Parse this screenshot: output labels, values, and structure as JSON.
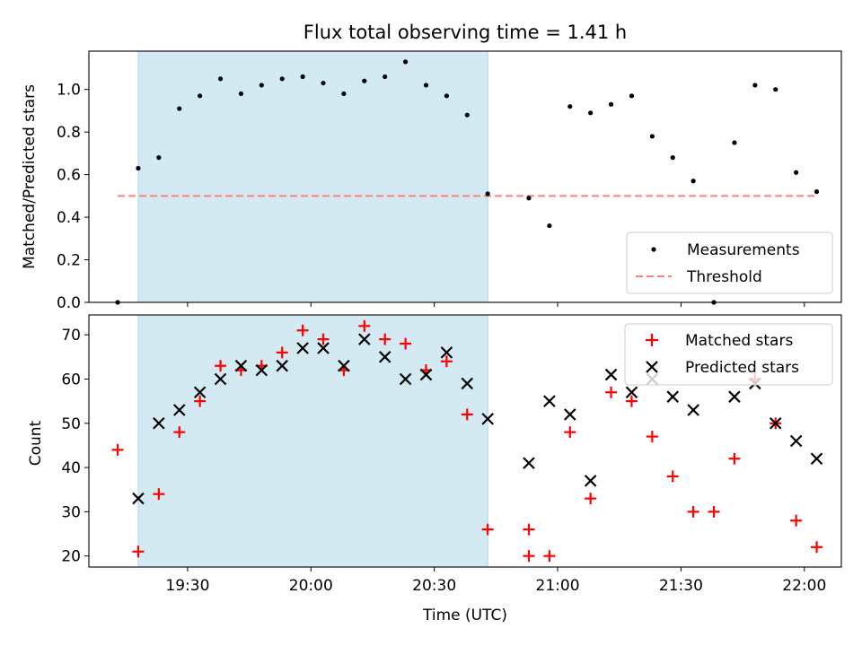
{
  "chart_data": [
    {
      "type": "scatter",
      "title": "Flux total observing time = 1.41 h",
      "ylabel": "Matched/Predicted stars",
      "xlabel": "",
      "xlim": [
        "19:06",
        "22:09"
      ],
      "ylim": [
        0,
        1.18
      ],
      "y_ticks": [
        "0.0",
        "0.2",
        "0.4",
        "0.6",
        "0.8",
        "1.0"
      ],
      "shaded_interval": [
        "19:18",
        "20:43"
      ],
      "shade_color": "#add8e6",
      "threshold": {
        "name": "Threshold",
        "value": 0.5,
        "x_range": [
          "19:13",
          "22:03"
        ],
        "color": "#ff7f7f"
      },
      "legend": {
        "placement": "lower right",
        "entries": [
          "Measurements",
          "Threshold"
        ]
      },
      "series": [
        {
          "name": "Measurements",
          "color": "#000000",
          "marker": "dot",
          "x": [
            "19:13",
            "19:18",
            "19:23",
            "19:28",
            "19:33",
            "19:38",
            "19:43",
            "19:48",
            "19:53",
            "19:58",
            "20:03",
            "20:08",
            "20:13",
            "20:18",
            "20:23",
            "20:28",
            "20:33",
            "20:38",
            "20:43",
            "20:53",
            "20:58",
            "21:03",
            "21:08",
            "21:13",
            "21:18",
            "21:23",
            "21:28",
            "21:33",
            "21:38",
            "21:43",
            "21:48",
            "21:53",
            "21:58",
            "22:03"
          ],
          "values": [
            0.0,
            0.63,
            0.68,
            0.91,
            0.97,
            1.05,
            0.98,
            1.02,
            1.05,
            1.06,
            1.03,
            0.98,
            1.04,
            1.06,
            1.13,
            1.02,
            0.97,
            0.88,
            0.51,
            0.49,
            0.36,
            0.92,
            0.89,
            0.93,
            0.97,
            0.78,
            0.68,
            0.57,
            0.0,
            0.75,
            1.02,
            1.0,
            0.61,
            0.52
          ]
        }
      ]
    },
    {
      "type": "scatter",
      "title": "",
      "xlabel": "Time (UTC)",
      "ylabel": "Count",
      "xlim": [
        "19:06",
        "22:09"
      ],
      "ylim": [
        17.5,
        74.5
      ],
      "x_ticks": [
        "19:30",
        "20:00",
        "20:30",
        "21:00",
        "21:30",
        "22:00"
      ],
      "y_ticks": [
        "20",
        "30",
        "40",
        "50",
        "60",
        "70"
      ],
      "shaded_interval": [
        "19:18",
        "20:43"
      ],
      "shade_color": "#add8e6",
      "legend": {
        "placement": "upper right",
        "entries": [
          "Matched stars",
          "Predicted stars"
        ]
      },
      "series": [
        {
          "name": "Matched stars",
          "color": "#ff0000",
          "marker": "plus",
          "x": [
            "19:13",
            "19:18",
            "19:23",
            "19:28",
            "19:33",
            "19:38",
            "19:43",
            "19:48",
            "19:53",
            "19:58",
            "20:03",
            "20:08",
            "20:13",
            "20:18",
            "20:23",
            "20:28",
            "20:33",
            "20:38",
            "20:43",
            "20:53",
            "20:53",
            "20:58",
            "21:03",
            "21:08",
            "21:13",
            "21:18",
            "21:23",
            "21:28",
            "21:33",
            "21:38",
            "21:43",
            "21:48",
            "21:53",
            "21:58",
            "22:03"
          ],
          "values": [
            44,
            21,
            34,
            48,
            55,
            63,
            62,
            63,
            66,
            71,
            69,
            62,
            72,
            69,
            68,
            62,
            64,
            52,
            26,
            26,
            20,
            20,
            48,
            33,
            57,
            55,
            47,
            38,
            30,
            30,
            42,
            60,
            50,
            28,
            22
          ]
        },
        {
          "name": "Predicted stars",
          "color": "#000000",
          "marker": "x",
          "x": [
            "19:18",
            "19:23",
            "19:28",
            "19:33",
            "19:38",
            "19:43",
            "19:48",
            "19:53",
            "19:58",
            "20:03",
            "20:08",
            "20:13",
            "20:18",
            "20:23",
            "20:28",
            "20:33",
            "20:38",
            "20:43",
            "20:53",
            "20:58",
            "21:03",
            "21:08",
            "21:13",
            "21:18",
            "21:23",
            "21:28",
            "21:33",
            "21:43",
            "21:48",
            "21:53",
            "21:58",
            "22:03"
          ],
          "values": [
            33,
            50,
            53,
            57,
            60,
            63,
            62,
            63,
            67,
            67,
            63,
            69,
            65,
            60,
            61,
            66,
            59,
            51,
            41,
            55,
            52,
            37,
            61,
            57,
            60,
            56,
            53,
            56,
            59,
            50,
            46,
            42
          ]
        }
      ]
    }
  ]
}
